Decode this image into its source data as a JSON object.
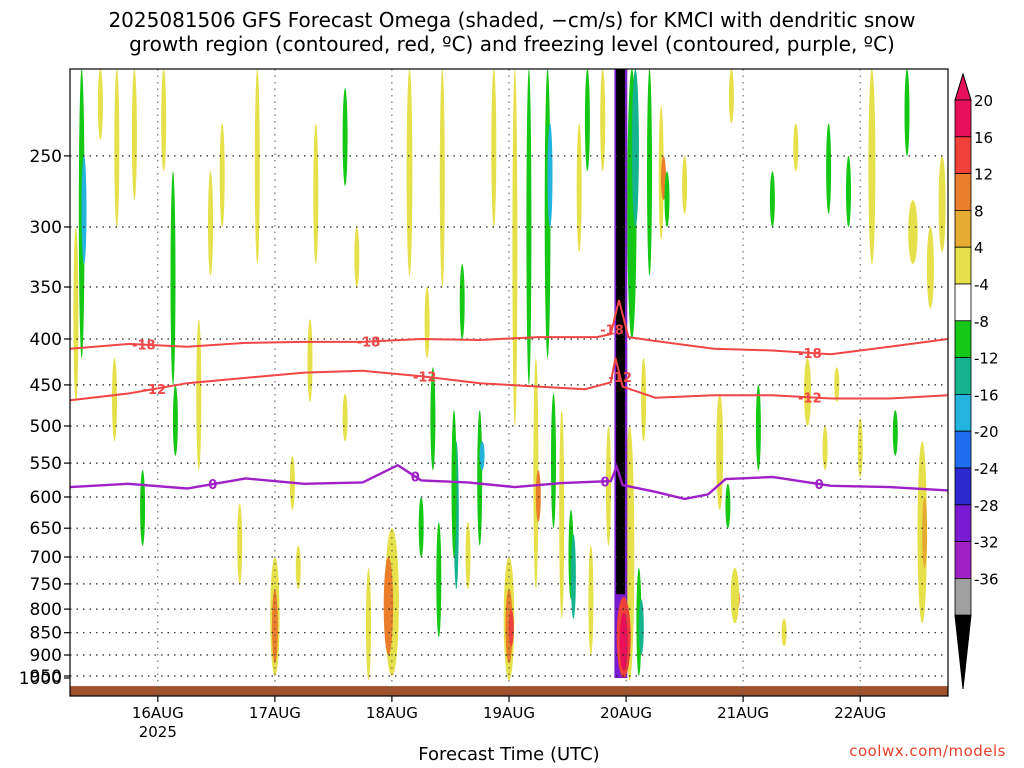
{
  "title_line1": "2025081506 GFS Forecast Omega (shaded, −cm/s) for KMCI with dendritic snow",
  "title_line2": "growth region (contoured, red, ºC) and freezing level (contoured, purple, ºC)",
  "credit": "coolwx.com/models",
  "chart_data": {
    "type": "heatmap",
    "title": "2025081506 GFS Forecast Omega (shaded, −cm/s) for KMCI with dendritic snow growth region (contoured, red, ºC) and freezing level (contoured, purple, ºC)",
    "xlabel": "Forecast Time (UTC)",
    "ylabel": "",
    "x_start": "2025-08-15 06Z",
    "x_end": "2025-08-22 18Z",
    "x_ticks": [
      "16AUG",
      "17AUG",
      "18AUG",
      "19AUG",
      "20AUG",
      "21AUG",
      "22AUG"
    ],
    "x_ticks_days": [
      0.75,
      1.75,
      2.75,
      3.75,
      4.75,
      5.75,
      6.75
    ],
    "x_year_label": "2025",
    "x_range_days": [
      0,
      7.5
    ],
    "y_ticks": [
      250,
      300,
      350,
      400,
      450,
      500,
      550,
      600,
      650,
      700,
      750,
      800,
      850,
      900,
      950,
      1000
    ],
    "y_range_hpa": [
      200,
      1000
    ],
    "y_scale": "log-pressure, inverted",
    "grid": "dotted",
    "colorbar": {
      "labels": [
        "20",
        "16",
        "12",
        "8",
        "4",
        "-4",
        "-8",
        "-12",
        "-16",
        "-20",
        "-24",
        "-28",
        "-32",
        "-36"
      ],
      "colors": [
        "#e8105a",
        "#f0403a",
        "#ea7e2a",
        "#e6ac32",
        "#e6e04a",
        "#ffffff",
        "#16c816",
        "#14b48e",
        "#22b4dc",
        "#1f6ef0",
        "#2a2ad0",
        "#7a1ad2",
        "#a020c8",
        "#a0a0a0",
        "#000000"
      ],
      "position": "right"
    },
    "series": [
      {
        "name": "-18",
        "color": "#f04646",
        "points": [
          [
            0,
            410
          ],
          [
            0.5,
            405
          ],
          [
            1,
            408
          ],
          [
            1.5,
            404
          ],
          [
            2,
            403
          ],
          [
            2.5,
            403
          ],
          [
            3,
            400
          ],
          [
            3.5,
            401
          ],
          [
            4,
            398
          ],
          [
            4.5,
            398
          ],
          [
            4.62,
            395
          ],
          [
            4.69,
            362
          ],
          [
            4.77,
            398
          ],
          [
            5,
            402
          ],
          [
            5.5,
            410
          ],
          [
            6,
            412
          ],
          [
            6.5,
            416
          ],
          [
            7,
            408
          ],
          [
            7.5,
            400
          ]
        ],
        "labels": [
          [
            0.63,
            "-18"
          ],
          [
            2.55,
            "-18"
          ],
          [
            4.63,
            "-18"
          ],
          [
            6.32,
            "-18"
          ]
        ]
      },
      {
        "name": "-12",
        "color": "#f04646",
        "points": [
          [
            0,
            468
          ],
          [
            0.5,
            460
          ],
          [
            1,
            448
          ],
          [
            1.5,
            442
          ],
          [
            2,
            436
          ],
          [
            2.5,
            434
          ],
          [
            3,
            440
          ],
          [
            3.5,
            448
          ],
          [
            4,
            452
          ],
          [
            4.4,
            455
          ],
          [
            4.62,
            447
          ],
          [
            4.66,
            420
          ],
          [
            4.72,
            452
          ],
          [
            5,
            465
          ],
          [
            5.5,
            462
          ],
          [
            6,
            462
          ],
          [
            6.5,
            466
          ],
          [
            7,
            466
          ],
          [
            7.5,
            462
          ]
        ],
        "labels": [
          [
            0.72,
            "-12"
          ],
          [
            3.03,
            "-12"
          ],
          [
            4.7,
            "-12"
          ],
          [
            6.32,
            "-12"
          ]
        ]
      },
      {
        "name": "0",
        "color": "#a020c8",
        "points": [
          [
            0,
            585
          ],
          [
            0.5,
            580
          ],
          [
            1,
            587
          ],
          [
            1.5,
            572
          ],
          [
            2,
            580
          ],
          [
            2.5,
            578
          ],
          [
            2.8,
            553
          ],
          [
            3,
            575
          ],
          [
            3.4,
            578
          ],
          [
            3.8,
            585
          ],
          [
            4.2,
            579
          ],
          [
            4.62,
            576
          ],
          [
            4.67,
            555
          ],
          [
            4.72,
            582
          ],
          [
            5,
            592
          ],
          [
            5.25,
            603
          ],
          [
            5.45,
            596
          ],
          [
            5.6,
            573
          ],
          [
            6,
            570
          ],
          [
            6.5,
            583
          ],
          [
            7,
            585
          ],
          [
            7.5,
            590
          ]
        ],
        "labels": [
          [
            1.22,
            "0"
          ],
          [
            2.95,
            "0"
          ],
          [
            4.57,
            "0"
          ],
          [
            6.4,
            "0"
          ]
        ]
      }
    ],
    "shaded_features": [
      {
        "desc": "strong upward motion column",
        "time_day": [
          4.65,
          4.75
        ],
        "hpa": [
          200,
          955
        ],
        "value": -36
      },
      {
        "desc": "strong downward motion",
        "time_day": [
          4.68,
          4.78
        ],
        "hpa": [
          780,
          960
        ],
        "value": 20
      }
    ],
    "terrain": {
      "color": "#a0522d",
      "hpa": [
        975,
        1000
      ]
    }
  }
}
